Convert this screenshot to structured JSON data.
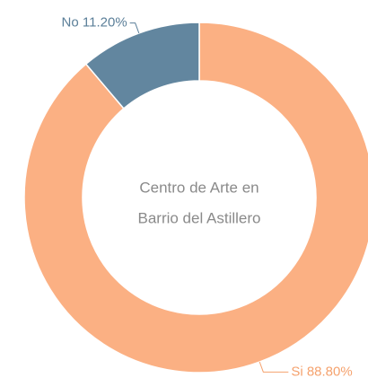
{
  "chart_data": {
    "type": "donut",
    "center_text": [
      "Centro de Arte en",
      "Barrio del Astillero"
    ],
    "categories": [
      "Si",
      "No"
    ],
    "values": [
      88.8,
      11.2
    ],
    "value_labels": [
      "Si 88.80%",
      "No 11.20%"
    ],
    "colors": [
      "#fbb083",
      "#62869f"
    ],
    "label_colors": [
      "#f5a26e",
      "#5b7f99"
    ]
  }
}
